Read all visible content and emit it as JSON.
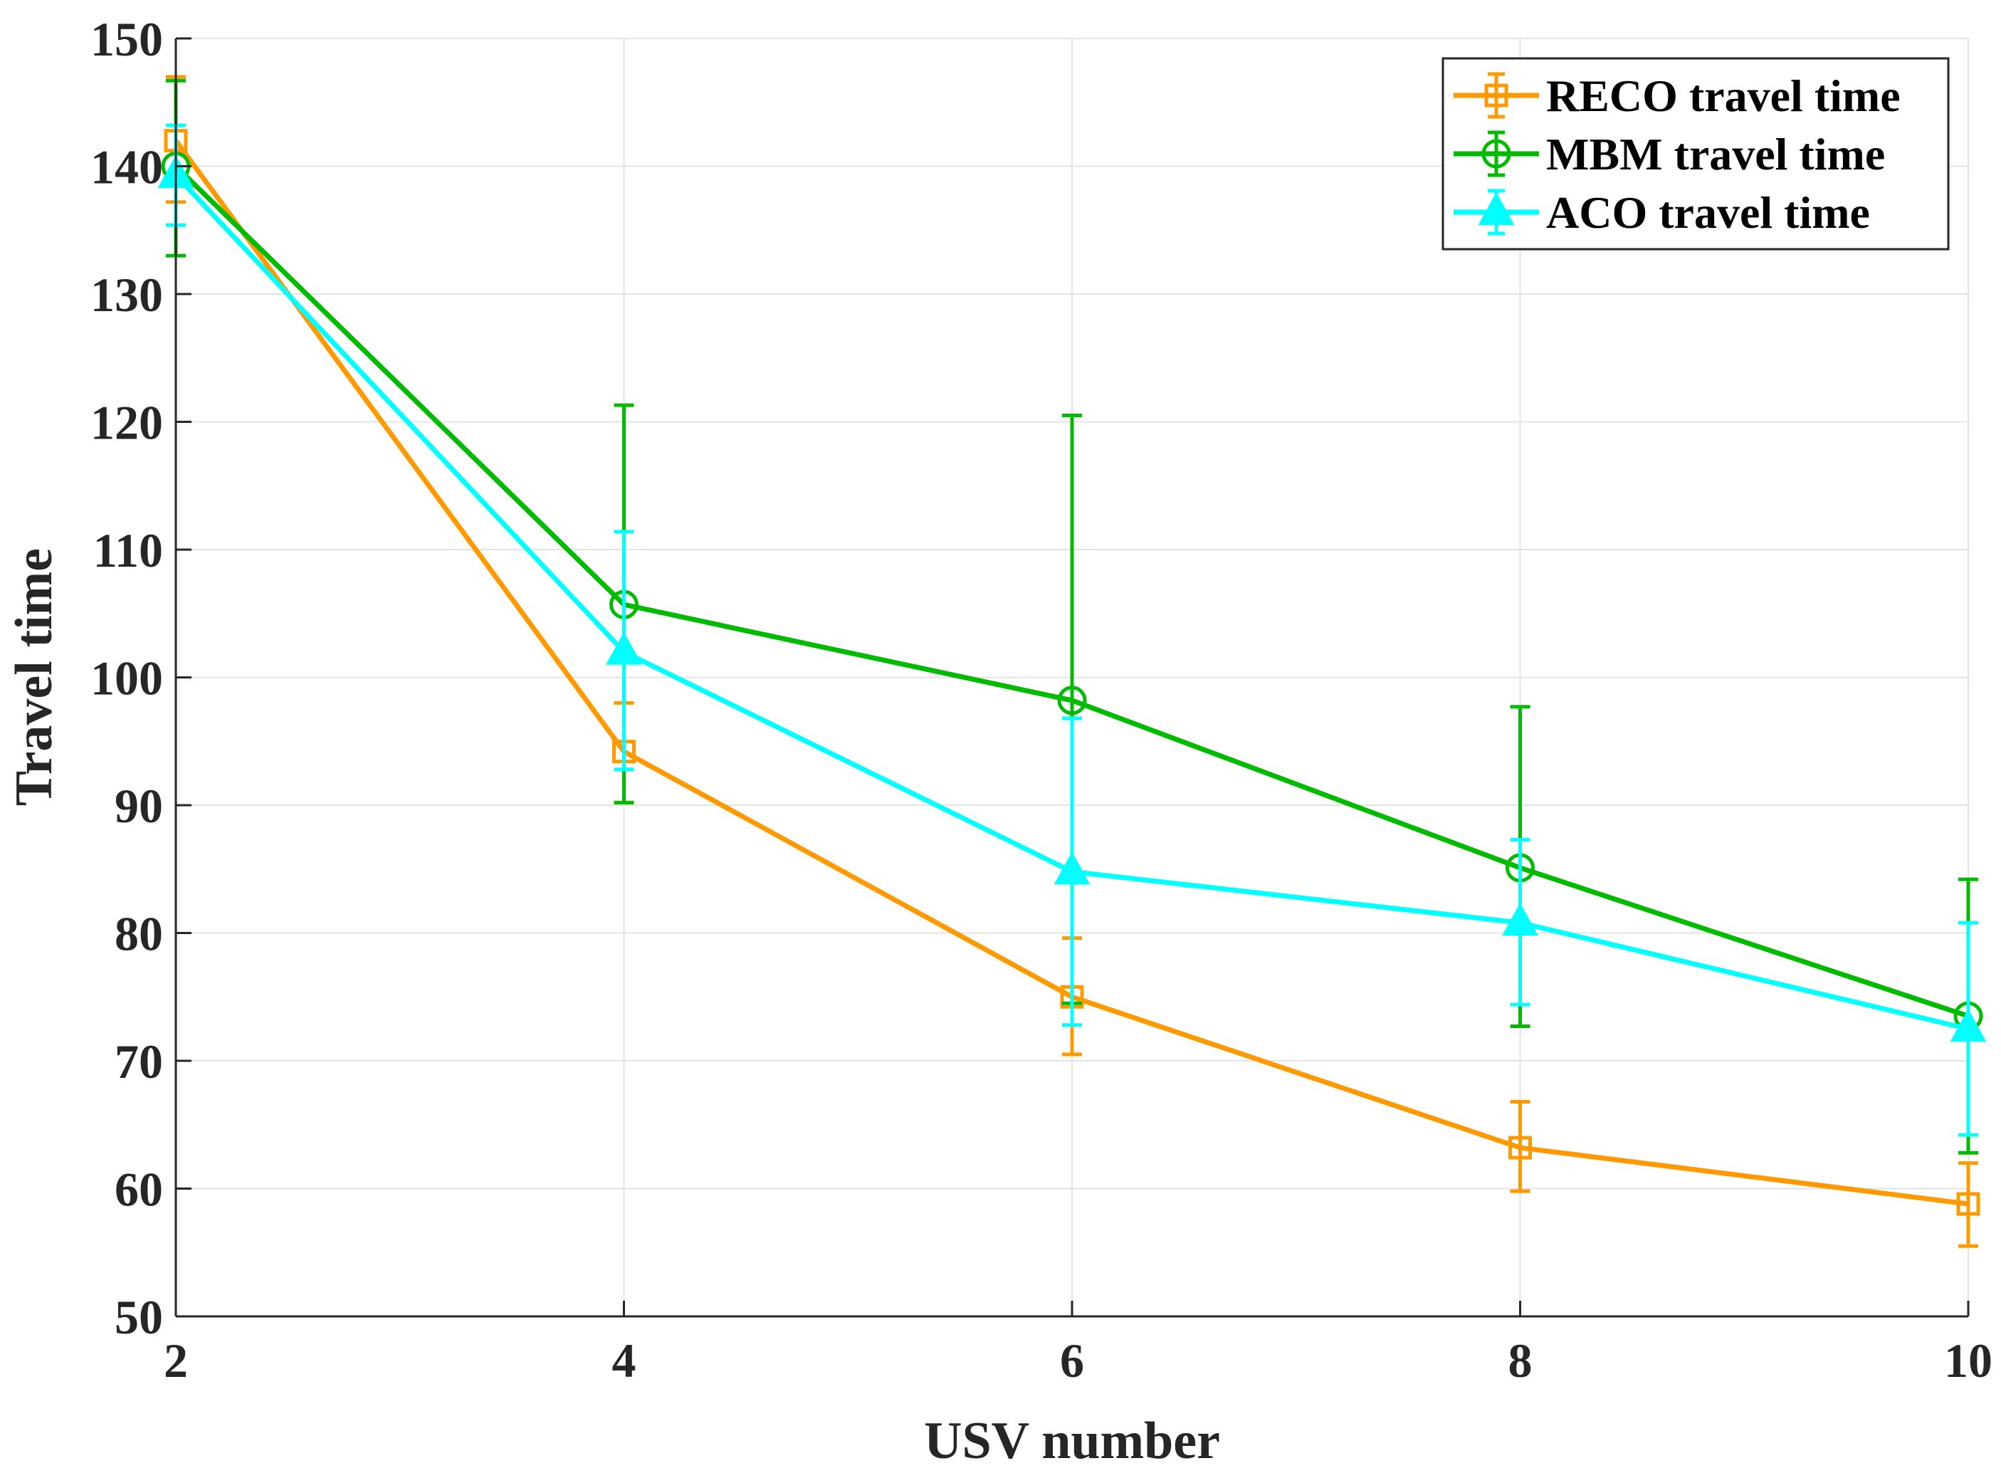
{
  "chart_data": {
    "type": "line",
    "xlabel": "USV number",
    "ylabel": "Travel time",
    "xlim": [
      2,
      10
    ],
    "ylim": [
      50,
      150
    ],
    "x": [
      2,
      4,
      6,
      8,
      10
    ],
    "xticks": [
      "2",
      "4",
      "6",
      "8",
      "10"
    ],
    "yticks": [
      "50",
      "60",
      "70",
      "80",
      "90",
      "100",
      "110",
      "120",
      "130",
      "140",
      "150"
    ],
    "grid": true,
    "legend_position": "top-right",
    "series": [
      {
        "name": "RECO travel time",
        "color": "#FF9900",
        "marker": "square",
        "values": [
          142,
          94.2,
          75,
          63.2,
          58.8
        ],
        "err_low": [
          137.2,
          90.2,
          70.5,
          59.8,
          55.5
        ],
        "err_high": [
          147,
          98,
          79.6,
          66.8,
          62
        ]
      },
      {
        "name": "MBM travel time",
        "color": "#00BB00",
        "marker": "circle",
        "values": [
          140,
          105.7,
          98.2,
          85.1,
          73.5
        ],
        "err_low": [
          133,
          90.2,
          74.5,
          72.7,
          62.8
        ],
        "err_high": [
          146.7,
          121.3,
          120.5,
          97.7,
          84.2
        ]
      },
      {
        "name": "ACO travel time",
        "color": "#00FFFF",
        "marker": "triangle",
        "values": [
          139.3,
          102,
          84.8,
          80.8,
          72.5
        ],
        "err_low": [
          135.4,
          92.8,
          72.8,
          74.4,
          64.2
        ],
        "err_high": [
          143.2,
          111.4,
          96.8,
          87.3,
          80.8
        ]
      }
    ]
  }
}
